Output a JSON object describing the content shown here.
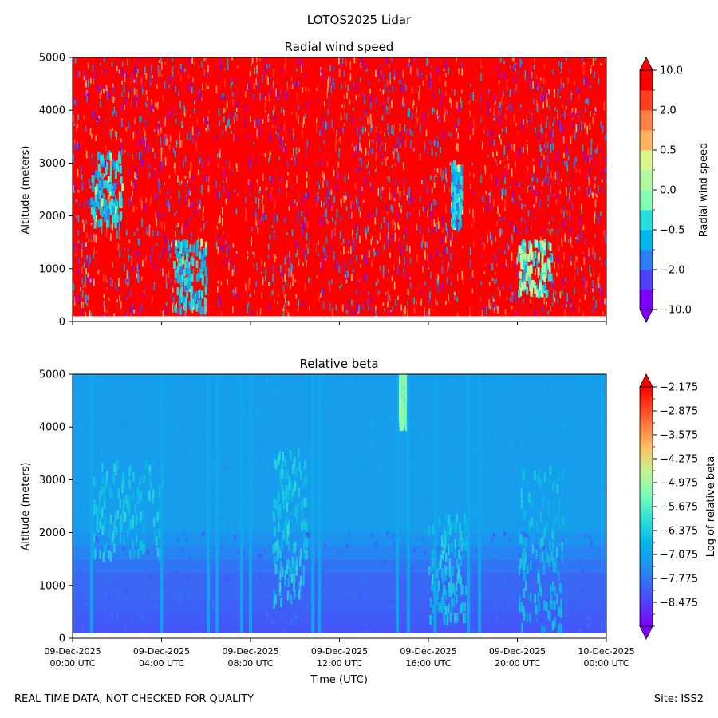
{
  "figure": {
    "title": "LOTOS2025 Lidar",
    "footer_left": "REAL TIME DATA, NOT CHECKED FOR QUALITY",
    "footer_right": "Site: ISS2"
  },
  "chart_data": [
    {
      "type": "heatmap",
      "title": "Radial wind speed",
      "ylabel": "Altitude (meters)",
      "xlabel": "",
      "ylim": [
        0,
        5000
      ],
      "yticks": [
        0,
        1000,
        2000,
        3000,
        4000,
        5000
      ],
      "xlim_hours": [
        0,
        24
      ],
      "xtick_hours": [
        0,
        4,
        8,
        12,
        16,
        20,
        24
      ],
      "colorbar": {
        "label": "Radial wind speed",
        "levels": [
          -10.0,
          -5.0,
          -2.0,
          -1.0,
          -0.5,
          0.0,
          0.0,
          0.5,
          1.0,
          2.0,
          5.0,
          10.0
        ],
        "tick_labels": [
          "10.0",
          "2.0",
          "0.5",
          "0.0",
          "−0.5",
          "−2.0",
          "−10.0"
        ],
        "tick_values": [
          10.0,
          2.0,
          0.5,
          0.0,
          -0.5,
          -2.0,
          -10.0
        ],
        "colors": [
          "#8000ff",
          "#5340f9",
          "#2c7ef3",
          "#00b5eb",
          "#2adcdc",
          "#80ffb4",
          "#b1f9a1",
          "#d9f58c",
          "#ffb360",
          "#ff7f48",
          "#ff4020",
          "#ff0000"
        ]
      },
      "features": {
        "dominant_value": 10.0,
        "vertical_bands_hours": [
          6.3,
          7.6,
          10.8,
          17.7,
          18.2
        ],
        "cool_patches": [
          {
            "hours": [
              0.8,
              2.2
            ],
            "alt_m": [
              1800,
              3200
            ],
            "value": -0.5
          },
          {
            "hours": [
              4.5,
              6.0
            ],
            "alt_m": [
              200,
              1500
            ],
            "value": -0.5
          },
          {
            "hours": [
              17.0,
              17.5
            ],
            "alt_m": [
              1800,
              3000
            ],
            "value": -0.5
          },
          {
            "hours": [
              20.0,
              21.5
            ],
            "alt_m": [
              500,
              1500
            ],
            "value": 0.0
          }
        ]
      }
    },
    {
      "type": "heatmap",
      "title": "Relative beta",
      "ylabel": "Altitude (meters)",
      "xlabel": "Time (UTC)",
      "ylim": [
        0,
        5000
      ],
      "yticks": [
        0,
        1000,
        2000,
        3000,
        4000,
        5000
      ],
      "xlim_hours": [
        0,
        24
      ],
      "xtick_hours": [
        0,
        4,
        8,
        12,
        16,
        20,
        24
      ],
      "xtick_labels": [
        [
          "09-Dec-2025",
          "00:00 UTC"
        ],
        [
          "09-Dec-2025",
          "04:00 UTC"
        ],
        [
          "09-Dec-2025",
          "08:00 UTC"
        ],
        [
          "09-Dec-2025",
          "12:00 UTC"
        ],
        [
          "09-Dec-2025",
          "16:00 UTC"
        ],
        [
          "09-Dec-2025",
          "20:00 UTC"
        ],
        [
          "10-Dec-2025",
          "00:00 UTC"
        ]
      ],
      "colorbar": {
        "label": "Log of relative beta",
        "min": -9.175,
        "max": -2.175,
        "tick_values": [
          -2.175,
          -2.875,
          -3.575,
          -4.275,
          -4.975,
          -5.675,
          -6.375,
          -7.075,
          -7.775,
          -8.475
        ],
        "tick_labels": [
          "−2.175",
          "−2.875",
          "−3.575",
          "−4.275",
          "−4.975",
          "−5.675",
          "−6.375",
          "−7.075",
          "−7.775",
          "−8.475"
        ]
      },
      "features": {
        "background_above_2000m": -7.2,
        "background_below_1000m": -8.0,
        "plumes": [
          {
            "hours": [
              0.8,
              4.0
            ],
            "alt_m": [
              1500,
              3300
            ],
            "value": -6.5
          },
          {
            "hours": [
              9.0,
              10.5
            ],
            "alt_m": [
              600,
              3500
            ],
            "value": -6.4
          },
          {
            "hours": [
              16.0,
              17.8
            ],
            "alt_m": [
              300,
              2300
            ],
            "value": -6.5
          },
          {
            "hours": [
              20.0,
              22.0
            ],
            "alt_m": [
              100,
              3200
            ],
            "value": -6.6
          },
          {
            "hours": [
              14.6,
              15.0
            ],
            "alt_m": [
              4000,
              5000
            ],
            "value": -5.2
          }
        ]
      }
    }
  ]
}
